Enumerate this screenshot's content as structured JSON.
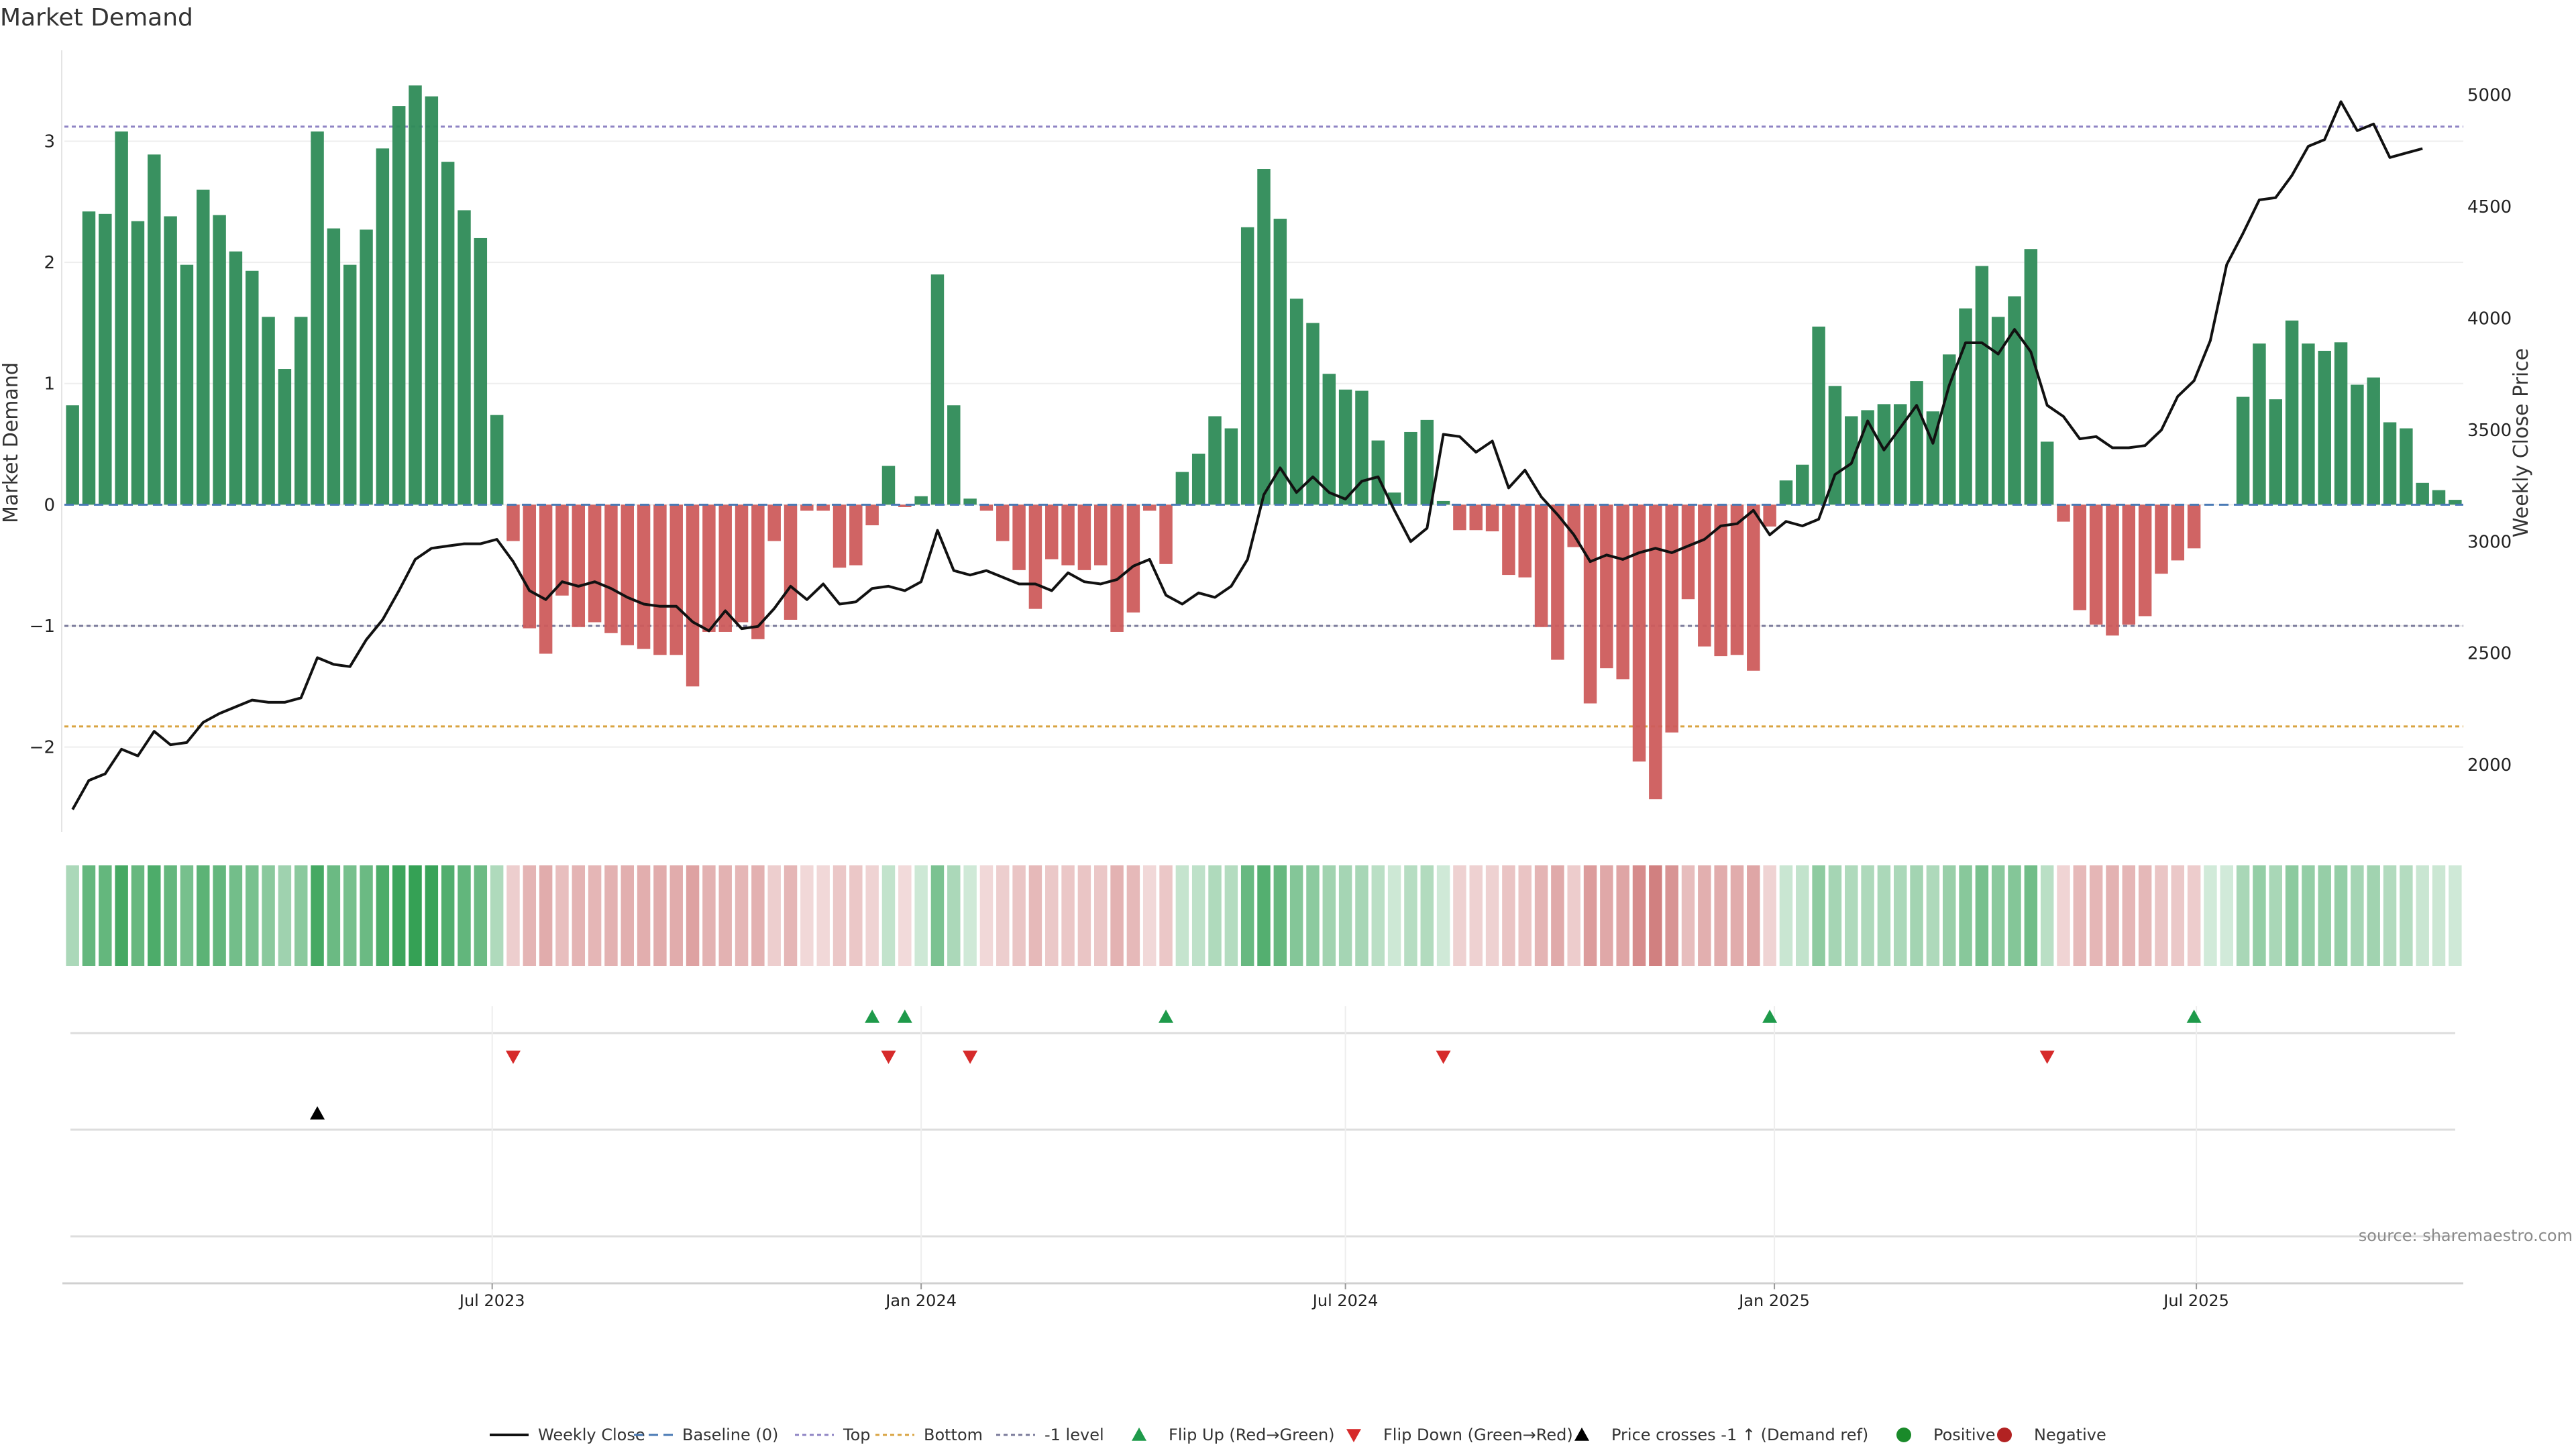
{
  "chart_data": {
    "type": "bar",
    "title": "Market Demand",
    "ylabel_left": "Market Demand",
    "ylabel_right": "Weekly Close Price",
    "ylim_left": [
      -2.7,
      3.75
    ],
    "ylim_right": [
      1700,
      5200
    ],
    "yticks_left": [
      -2,
      -1,
      0,
      1,
      2,
      3
    ],
    "yticks_right": [
      2000,
      2500,
      3000,
      3500,
      4000,
      4500,
      5000
    ],
    "x_start": "2023-01-02",
    "x_interval_days": 7,
    "x_tick_labels": [
      {
        "date": "2023-07-01",
        "label": "Jul 2023"
      },
      {
        "date": "2024-01-01",
        "label": "Jan 2024"
      },
      {
        "date": "2024-07-01",
        "label": "Jul 2024"
      },
      {
        "date": "2025-01-01",
        "label": "Jan 2025"
      },
      {
        "date": "2025-07-01",
        "label": "Jul 2025"
      }
    ],
    "reference_lines": {
      "top": 3.12,
      "minus_one": -1.0,
      "bottom": -1.83,
      "baseline": 0
    },
    "demand": [
      0.82,
      2.42,
      2.4,
      3.08,
      2.34,
      2.89,
      2.38,
      1.98,
      2.6,
      2.39,
      2.09,
      1.93,
      1.55,
      1.12,
      1.55,
      3.08,
      2.28,
      1.98,
      2.27,
      2.94,
      3.29,
      3.46,
      3.37,
      2.83,
      2.43,
      2.2,
      0.74,
      -0.3,
      -1.02,
      -1.23,
      -0.75,
      -1.01,
      -0.97,
      -1.06,
      -1.16,
      -1.19,
      -1.24,
      -1.24,
      -1.5,
      -1.05,
      -1.05,
      -0.97,
      -1.11,
      -0.3,
      -0.95,
      -0.05,
      -0.05,
      -0.52,
      -0.5,
      -0.17,
      0.32,
      -0.02,
      0.07,
      1.9,
      0.82,
      0.05,
      -0.05,
      -0.3,
      -0.54,
      -0.86,
      -0.45,
      -0.5,
      -0.54,
      -0.5,
      -1.05,
      -0.89,
      -0.05,
      -0.49,
      0.27,
      0.42,
      0.73,
      0.63,
      2.29,
      2.77,
      2.36,
      1.7,
      1.5,
      1.08,
      0.95,
      0.94,
      0.53,
      0.1,
      0.6,
      0.7,
      0.03,
      -0.21,
      -0.21,
      -0.22,
      -0.58,
      -0.6,
      -1.01,
      -1.28,
      -0.35,
      -1.64,
      -1.35,
      -1.44,
      -2.12,
      -2.43,
      -1.88,
      -0.78,
      -1.17,
      -1.25,
      -1.24,
      -1.37,
      -0.18,
      0.2,
      0.33,
      1.47,
      0.98,
      0.73,
      0.78,
      0.83,
      0.83,
      1.02,
      0.77,
      1.24,
      1.62,
      1.97,
      1.55,
      1.72,
      2.11,
      0.52,
      -0.14,
      -0.87,
      -0.99,
      -1.08,
      -0.99,
      -0.92,
      -0.57,
      -0.46,
      -0.36,
      0.0,
      0.0,
      0.89,
      1.33,
      0.87,
      1.52,
      1.33,
      1.27,
      1.34,
      0.99,
      1.05,
      0.68,
      0.63,
      0.18,
      0.12,
      0.04
    ],
    "weekly_close": [
      1800,
      1930,
      1960,
      2070,
      2040,
      2150,
      2090,
      2100,
      2190,
      2230,
      2260,
      2290,
      2280,
      2280,
      2300,
      2480,
      2450,
      2440,
      2560,
      2650,
      2780,
      2920,
      2970,
      2980,
      2990,
      2990,
      3010,
      2910,
      2780,
      2740,
      2820,
      2800,
      2820,
      2790,
      2750,
      2720,
      2710,
      2710,
      2640,
      2600,
      2690,
      2610,
      2620,
      2700,
      2800,
      2740,
      2810,
      2720,
      2730,
      2790,
      2800,
      2780,
      2820,
      3050,
      2870,
      2850,
      2870,
      2840,
      2810,
      2810,
      2780,
      2860,
      2820,
      2810,
      2830,
      2890,
      2920,
      2760,
      2720,
      2770,
      2750,
      2800,
      2920,
      3210,
      3330,
      3220,
      3290,
      3220,
      3190,
      3270,
      3290,
      3140,
      3000,
      3060,
      3480,
      3470,
      3400,
      3450,
      3240,
      3320,
      3200,
      3120,
      3030,
      2910,
      2940,
      2920,
      2950,
      2970,
      2950,
      2980,
      3010,
      3070,
      3080,
      3140,
      3030,
      3090,
      3070,
      3100,
      3300,
      3350,
      3540,
      3410,
      3510,
      3610,
      3440,
      3700,
      3890,
      3890,
      3840,
      3950,
      3850,
      3610,
      3560,
      3460,
      3470,
      3420,
      3420,
      3430,
      3500,
      3650,
      3720,
      3900,
      4240,
      4380,
      4530,
      4540,
      4640,
      4770,
      4800,
      4970,
      4840,
      4870,
      4720,
      4740,
      4760
    ],
    "flip_up_weeks": [
      49,
      51,
      67,
      104,
      130
    ],
    "flip_down_weeks": [
      27,
      50,
      55,
      84,
      121
    ],
    "price_cross_weeks": [
      15
    ],
    "legend": [
      {
        "key": "weekly_close",
        "label": "Weekly Close"
      },
      {
        "key": "baseline",
        "label": "Baseline (0)"
      },
      {
        "key": "top",
        "label": "Top"
      },
      {
        "key": "bottom",
        "label": "Bottom"
      },
      {
        "key": "minus_one",
        "label": "-1 level"
      },
      {
        "key": "flip_up",
        "label": "Flip Up (Red→Green)"
      },
      {
        "key": "flip_down",
        "label": "Flip Down (Green→Red)"
      },
      {
        "key": "price_cross",
        "label": "Price crosses -1 ↑ (Demand ref)"
      },
      {
        "key": "positive",
        "label": "Positive"
      },
      {
        "key": "negative",
        "label": "Negative"
      }
    ],
    "colors": {
      "positive": "#2e8b57",
      "negative": "#cd5c5c",
      "price": "#111111",
      "baseline": "#4a7ab5",
      "top": "#8f84c4",
      "bottom": "#d9a441",
      "minus_one": "#7a7a9a",
      "flip_up": "#1e9a4a",
      "flip_down": "#d62a2a",
      "price_cross": "#000000",
      "positive_dot": "#1a8a2a",
      "negative_dot": "#b22222"
    },
    "source": "source: sharemaestro.com"
  }
}
